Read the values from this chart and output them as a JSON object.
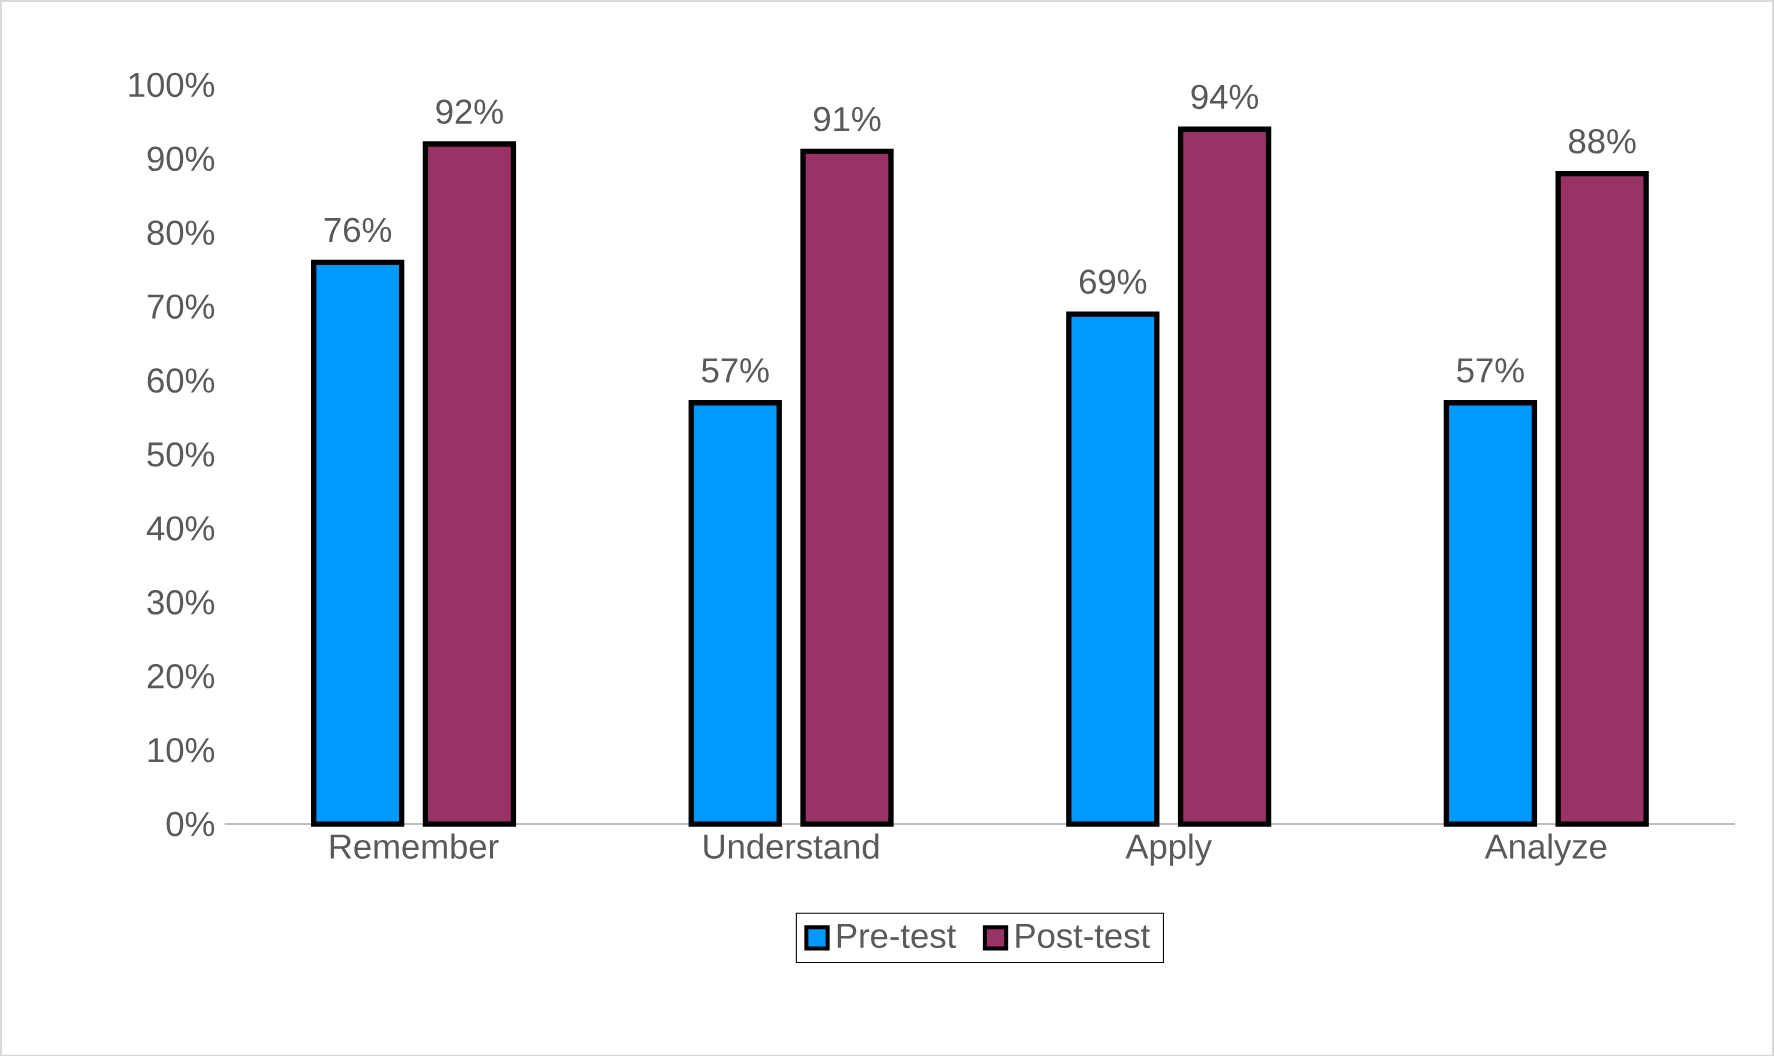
{
  "chart_data": {
    "type": "bar",
    "categories": [
      "Remember",
      "Understand",
      "Apply",
      "Analyze"
    ],
    "series": [
      {
        "name": "Pre-test",
        "color": "#0099ff",
        "values": [
          76,
          57,
          69,
          57
        ],
        "value_labels": [
          "76%",
          "57%",
          "69%",
          "57%"
        ]
      },
      {
        "name": "Post-test",
        "color": "#993366",
        "values": [
          92,
          91,
          94,
          88
        ],
        "value_labels": [
          "92%",
          "91%",
          "94%",
          "88%"
        ]
      }
    ],
    "ylim": [
      0,
      100
    ],
    "yticks": [
      {
        "value": 0,
        "label": "0%"
      },
      {
        "value": 10,
        "label": "10%"
      },
      {
        "value": 20,
        "label": "20%"
      },
      {
        "value": 30,
        "label": "30%"
      },
      {
        "value": 40,
        "label": "40%"
      },
      {
        "value": 50,
        "label": "50%"
      },
      {
        "value": 60,
        "label": "60%"
      },
      {
        "value": 70,
        "label": "70%"
      },
      {
        "value": 80,
        "label": "80%"
      },
      {
        "value": 90,
        "label": "90%"
      },
      {
        "value": 100,
        "label": "100%"
      }
    ],
    "grid": false,
    "legend": "bottom"
  }
}
